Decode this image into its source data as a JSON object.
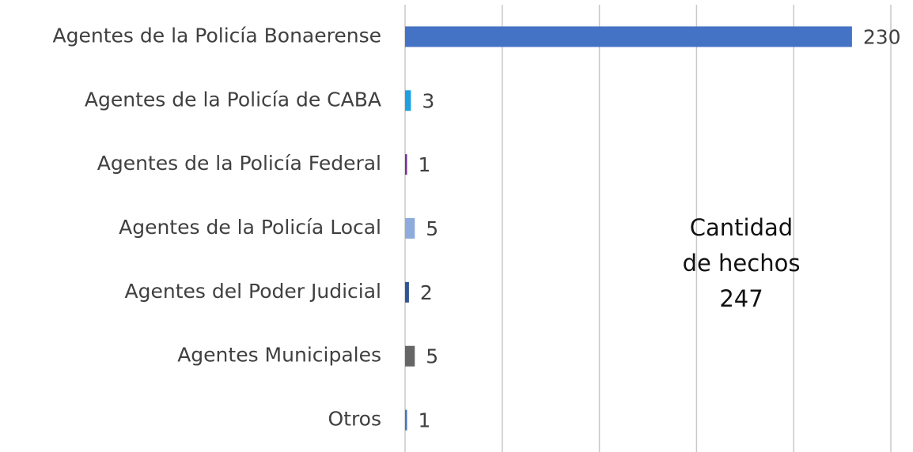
{
  "chart_data": {
    "type": "barh",
    "categories": [
      "Agentes de la Policía Bonaerense",
      "Agentes de la Policía de CABA",
      "Agentes de la Policía Federal",
      "Agentes de la Policía Local",
      "Agentes del Poder Judicial",
      "Agentes Municipales",
      "Otros"
    ],
    "values": [
      230,
      3,
      1,
      5,
      2,
      5,
      1
    ],
    "colors": [
      "#4472c4",
      "#1ea0e0",
      "#7030a0",
      "#8faadc",
      "#2f5597",
      "#666666",
      "#4472c4"
    ],
    "xlim": [
      0,
      250
    ],
    "xticks": [
      0,
      50,
      100,
      150,
      200,
      250
    ],
    "grid": true,
    "annotation": [
      "Cantidad",
      "de hechos",
      "247"
    ]
  }
}
